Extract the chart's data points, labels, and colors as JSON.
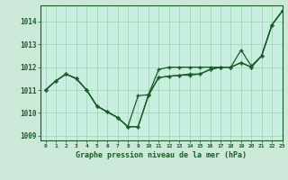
{
  "xlabel": "Graphe pression niveau de la mer (hPa)",
  "background_color": "#cce8d8",
  "plot_bg_color": "#c8eee0",
  "line_color": "#1a5c28",
  "grid_color": "#9ecfb4",
  "xlim": [
    -0.5,
    23
  ],
  "ylim": [
    1008.8,
    1014.7
  ],
  "yticks": [
    1009,
    1010,
    1011,
    1012,
    1013,
    1014
  ],
  "xticks": [
    0,
    1,
    2,
    3,
    4,
    5,
    6,
    7,
    8,
    9,
    10,
    11,
    12,
    13,
    14,
    15,
    16,
    17,
    18,
    19,
    20,
    21,
    22,
    23
  ],
  "series1": [
    1011.0,
    1011.4,
    1011.7,
    1011.5,
    1011.0,
    1010.3,
    1010.05,
    1009.8,
    1009.4,
    1009.4,
    1010.8,
    1011.9,
    1012.0,
    1012.0,
    1012.0,
    1012.0,
    1012.0,
    1012.0,
    1012.0,
    1012.2,
    1012.0,
    1012.5,
    1013.85,
    1014.45
  ],
  "series2": [
    1011.0,
    1011.4,
    1011.7,
    1011.5,
    1011.0,
    1010.3,
    1010.05,
    1009.8,
    1009.4,
    1009.4,
    1010.75,
    1011.55,
    1011.6,
    1011.65,
    1011.7,
    1011.7,
    1011.9,
    1012.0,
    1012.0,
    1012.75,
    1012.05,
    1012.5,
    1013.85,
    1014.45
  ],
  "series3": [
    1011.0,
    1011.4,
    1011.7,
    1011.5,
    1011.0,
    1010.3,
    1010.05,
    1009.8,
    1009.4,
    1010.75,
    1010.8,
    1011.55,
    1011.6,
    1011.65,
    1011.65,
    1011.7,
    1011.9,
    1012.0,
    1012.0,
    1012.2,
    1012.0,
    1012.5,
    1013.85,
    1014.45
  ],
  "marker": "+",
  "markersize": 3,
  "linewidth": 0.9
}
